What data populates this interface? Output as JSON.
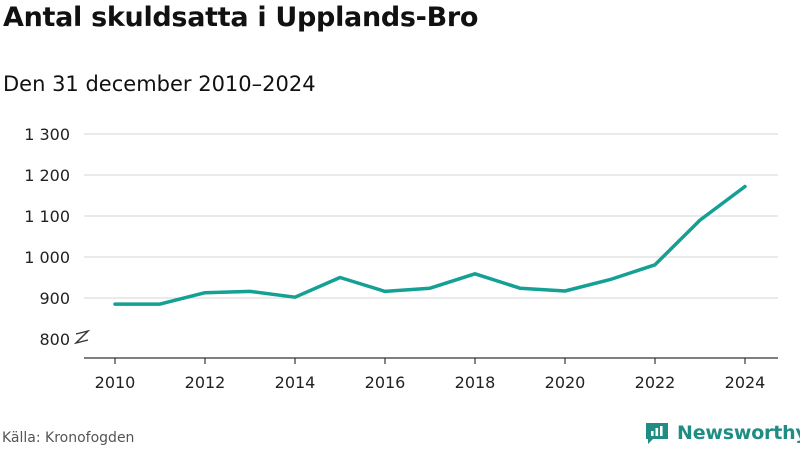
{
  "title": "Antal skuldsatta i Upplands-Bro",
  "subtitle": "Den 31 december 2010–2024",
  "source": "Källa: Kronofogden",
  "brand": {
    "name": "Newsworthy",
    "icon": "newsworthy-logo-icon",
    "color": "#1f8d84"
  },
  "chart_data": {
    "type": "line",
    "title": "Antal skuldsatta i Upplands-Bro",
    "subtitle": "Den 31 december 2010–2024",
    "xlabel": "",
    "ylabel": "",
    "x": [
      2010,
      2011,
      2012,
      2013,
      2014,
      2015,
      2016,
      2017,
      2018,
      2019,
      2020,
      2021,
      2022,
      2023,
      2024
    ],
    "series": [
      {
        "name": "Antal skuldsatta",
        "color": "#14a094",
        "values": [
          885,
          885,
          913,
          916,
          902,
          950,
          916,
          924,
          959,
          924,
          917,
          945,
          981,
          1090,
          1172
        ]
      }
    ],
    "xticks": [
      2010,
      2012,
      2014,
      2016,
      2018,
      2020,
      2022,
      2024
    ],
    "xtick_labels": [
      "2010",
      "2012",
      "2014",
      "2016",
      "2018",
      "2020",
      "2022",
      "2024"
    ],
    "yticks": [
      800,
      900,
      1000,
      1100,
      1200,
      1300
    ],
    "ytick_labels": [
      "800",
      "900",
      "1 000",
      "1 100",
      "1 200",
      "1 300"
    ],
    "ylim": [
      770,
      1300
    ],
    "xlim": [
      2009.2,
      2024.8
    ],
    "grid": true,
    "axis_break": true
  }
}
